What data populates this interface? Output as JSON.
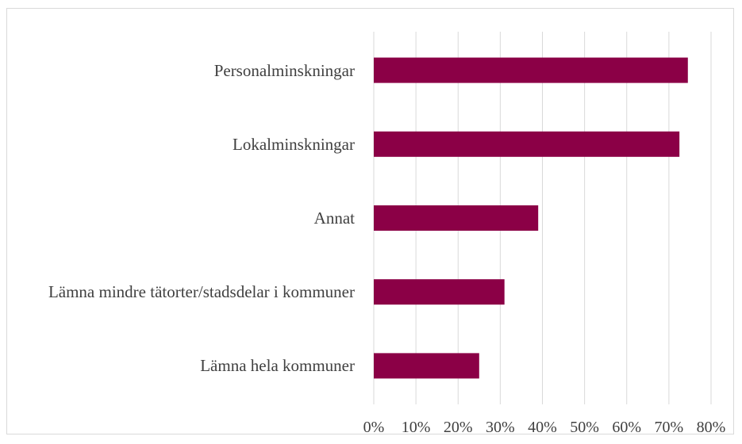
{
  "chart_data": {
    "type": "barh",
    "categories": [
      "Personalminskningar",
      "Lokalminskningar",
      "Annat",
      "Lämna mindre tätorter/stadsdelar i kommuner",
      "Lämna hela kommuner"
    ],
    "values": [
      74.5,
      72.5,
      39,
      31,
      25
    ],
    "color": "#8b0046",
    "xlim": [
      0,
      80
    ],
    "xticks": [
      {
        "value": 0,
        "label": "0%"
      },
      {
        "value": 10,
        "label": "10%"
      },
      {
        "value": 20,
        "label": "20%"
      },
      {
        "value": 30,
        "label": "30%"
      },
      {
        "value": 40,
        "label": "40%"
      },
      {
        "value": 50,
        "label": "50%"
      },
      {
        "value": 60,
        "label": "60%"
      },
      {
        "value": 70,
        "label": "70%"
      },
      {
        "value": 80,
        "label": "80%"
      }
    ],
    "grid": true
  }
}
